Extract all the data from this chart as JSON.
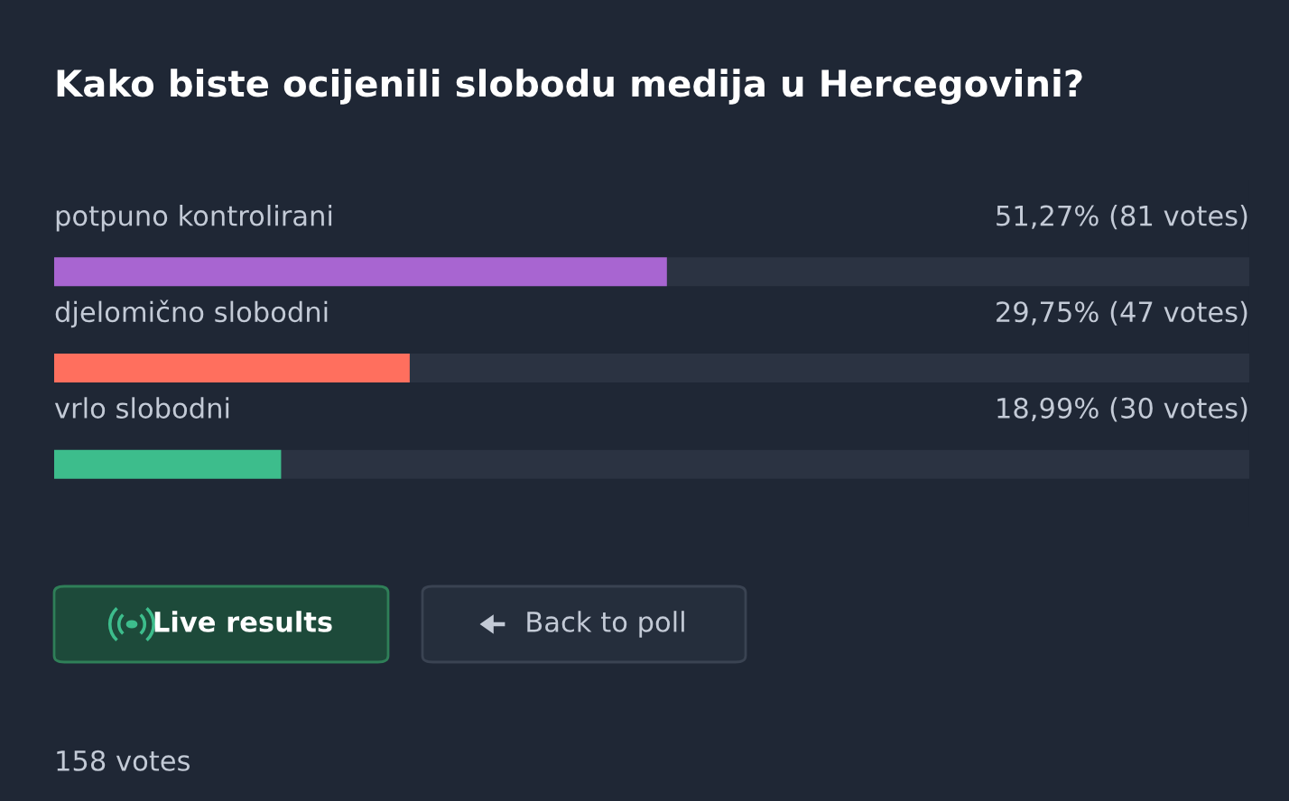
{
  "chart_data": {
    "type": "bar",
    "orientation": "horizontal",
    "title": "Kako biste ocijenili slobodu medija u Hercegovini?",
    "categories": [
      "potpuno kontrolirani",
      "djelomično slobodni",
      "vrlo slobodni"
    ],
    "values": [
      51.27,
      29.75,
      18.99
    ],
    "colors": [
      "#a865d1",
      "#ff6f5e",
      "#3dbd8c"
    ],
    "value_labels": [
      "51,27% (81 votes)",
      "29,75% (47 votes)",
      "18,99% (30 votes)"
    ],
    "xlim": [
      0,
      100
    ],
    "legend": false,
    "annotations": [
      "Live results",
      "Back to poll",
      "158 votes"
    ]
  }
}
